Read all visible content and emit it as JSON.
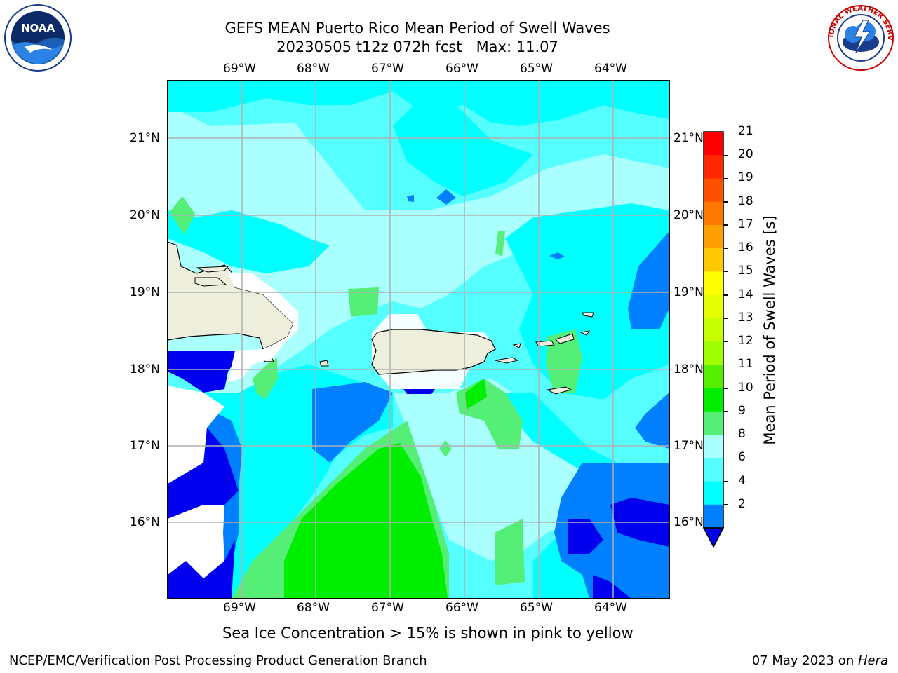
{
  "header": {
    "title_line1": "GEFS MEAN Puerto Rico Mean Period of Swell Waves",
    "title_line2": "20230505 t12z 072h fcst   Max: 11.07"
  },
  "logos": {
    "left": {
      "icon": "noaa-logo-icon",
      "text": "NOAA"
    },
    "right": {
      "icon": "nws-logo-icon",
      "text": "NATIONAL WEATHER SERVICE"
    }
  },
  "map": {
    "lon_labels": [
      "69°W",
      "68°W",
      "67°W",
      "66°W",
      "65°W",
      "64°W"
    ],
    "lat_labels": [
      "21°N",
      "20°N",
      "19°N",
      "18°N",
      "17°N",
      "16°N"
    ],
    "colors": {
      "land": "#eeeedd",
      "band_2_4": "#0080ff",
      "band_below_2": "#0000ee",
      "band_4_6": "#00ffff",
      "band_6_8": "#55ffff",
      "band_8_9": "#aaffff",
      "band_9_10": "#55ee77",
      "band_10_11": "#00ee00",
      "grid": "#b0b0b0"
    }
  },
  "colorbar": {
    "label": "Mean Period of Swell Waves [s]",
    "ticks": [
      "21",
      "20",
      "19",
      "18",
      "17",
      "16",
      "15",
      "14",
      "13",
      "12",
      "11",
      "10",
      "9",
      "8",
      "6",
      "4",
      "2"
    ],
    "colors": [
      "#ff0000",
      "#ff2800",
      "#ff5000",
      "#ff7800",
      "#ffa000",
      "#ffc800",
      "#ffff00",
      "#e6ff00",
      "#c8ff00",
      "#a0ff00",
      "#55ee00",
      "#00ee00",
      "#55ee77",
      "#aaffff",
      "#55ffff",
      "#00ffff",
      "#0080ff"
    ],
    "extend_color": "#0000ee"
  },
  "caption": "Sea Ice Concentration > 15% is shown in pink to yellow",
  "footer": {
    "left": "NCEP/EMC/Verification Post Processing Product Generation Branch",
    "date": "07 May 2023 on ",
    "host": "Hera"
  }
}
